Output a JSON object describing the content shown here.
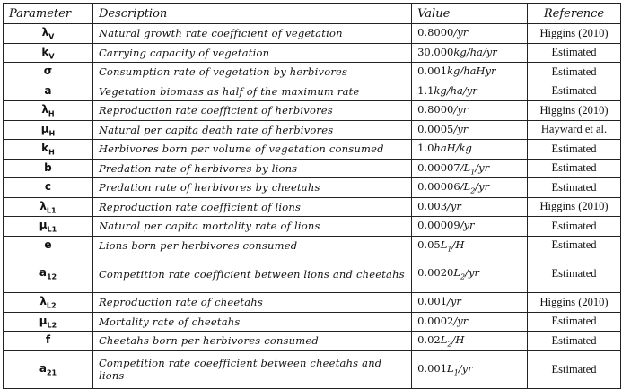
{
  "headers": {
    "parameter": "Parameter",
    "description": "Description",
    "value": "Value",
    "reference": "Reference"
  },
  "rows": [
    {
      "sym": "λ",
      "sub": "V",
      "desc": "Natural growth rate coefficient of vegetation",
      "num": "0.8000",
      "unit": "/yr",
      "usub": "",
      "tail": "",
      "ref": "Higgins (2010)"
    },
    {
      "sym": "k",
      "sub": "V",
      "desc": "Carrying capacity of vegetation",
      "num": "30,000",
      "unit": "kg/ha/yr",
      "usub": "",
      "tail": "",
      "ref": "Estimated"
    },
    {
      "sym": "σ",
      "sub": "",
      "desc": "Consumption rate of vegetation by herbivores",
      "num": "0.001",
      "unit": "kg/haHyr",
      "usub": "",
      "tail": "",
      "ref": "Estimated"
    },
    {
      "sym": "a",
      "sub": "",
      "desc": "Vegetation biomass as half of the maximum rate",
      "num": "1.1",
      "unit": "kg/ha/yr",
      "usub": "",
      "tail": "",
      "ref": "Estimated"
    },
    {
      "sym": "λ",
      "sub": "H",
      "desc": "Reproduction rate coefficient of herbivores",
      "num": "0.8000",
      "unit": "/yr",
      "usub": "",
      "tail": "",
      "ref": "Higgins (2010)"
    },
    {
      "sym": "μ",
      "sub": "H",
      "desc": "Natural per capita death rate of herbivores",
      "num": "0.0005",
      "unit": "/yr",
      "usub": "",
      "tail": "",
      "ref": "Hayward et al."
    },
    {
      "sym": "k",
      "sub": "H",
      "desc": "Herbivores born per volume of vegetation consumed",
      "num": "1.0",
      "unit": "haH/kg",
      "usub": "",
      "tail": "",
      "ref": "Estimated"
    },
    {
      "sym": "b",
      "sub": "",
      "desc": "Predation rate of herbivores by lions",
      "num": "0.00007",
      "unit": "/L",
      "usub": "1",
      "tail": "/yr",
      "ref": "Estimated"
    },
    {
      "sym": "c",
      "sub": "",
      "desc": "Predation rate of herbivores by cheetahs",
      "num": "0.00006",
      "unit": "/L",
      "usub": "2",
      "tail": "/yr",
      "ref": "Estimated"
    },
    {
      "sym": "λ",
      "sub": "L1",
      "desc": "Reproduction rate coefficient of lions",
      "num": "0.003",
      "unit": "/yr",
      "usub": "",
      "tail": "",
      "ref": "Higgins (2010)"
    },
    {
      "sym": "μ",
      "sub": "L1",
      "desc": "Natural per capita mortality rate of lions",
      "num": "0.00009",
      "unit": "/yr",
      "usub": "",
      "tail": "",
      "ref": "Estimated"
    },
    {
      "sym": "e",
      "sub": "",
      "desc": "Lions born per herbivores consumed",
      "num": "0.05",
      "unit": "L",
      "usub": "1",
      "tail": "/H",
      "ref": "Estimated"
    },
    {
      "sym": "a",
      "sub": "12",
      "desc": "Competition rate coefficient between lions and cheetahs",
      "num": "0.0020",
      "unit": "L",
      "usub": "2",
      "tail": "/yr",
      "ref": "Estimated",
      "tall": true
    },
    {
      "sym": "λ",
      "sub": "L2",
      "desc": "Reproduction rate of cheetahs",
      "num": "0.001",
      "unit": "/yr",
      "usub": "",
      "tail": "",
      "ref": "Higgins (2010)"
    },
    {
      "sym": "μ",
      "sub": "L2",
      "desc": "Mortality rate of cheetahs",
      "num": "0.0002",
      "unit": "/yr",
      "usub": "",
      "tail": "",
      "ref": "Estimated"
    },
    {
      "sym": "f",
      "sub": "",
      "desc": "Cheetahs born per herbivores consumed",
      "num": "0.02",
      "unit": "L",
      "usub": "2",
      "tail": "/H",
      "ref": "Estimated"
    },
    {
      "sym": "a",
      "sub": "21",
      "desc": "Competition rate coeefficient between cheetahs and lions",
      "num": "0.001",
      "unit": "L",
      "usub": "1",
      "tail": "/yr",
      "ref": "Estimated",
      "tall": true
    }
  ]
}
